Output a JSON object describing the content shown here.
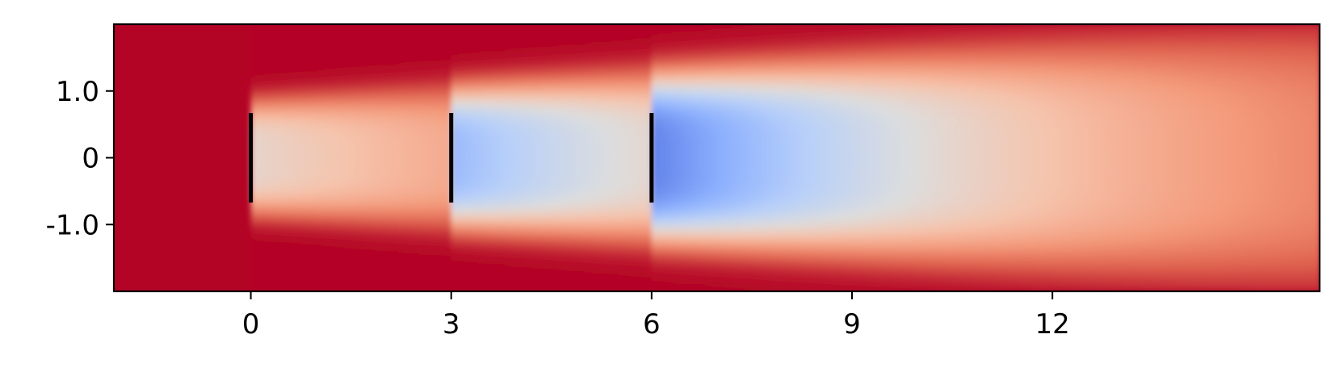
{
  "chart_data": {
    "type": "heatmap",
    "title": "",
    "xlabel": "",
    "ylabel": "",
    "xlim": [
      -2.05,
      16.0
    ],
    "ylim": [
      -2.0,
      2.0
    ],
    "x_ticks": [
      {
        "value": 0,
        "label": "0"
      },
      {
        "value": 3,
        "label": "3"
      },
      {
        "value": 6,
        "label": "6"
      },
      {
        "value": 9,
        "label": "9"
      },
      {
        "value": 12,
        "label": "12"
      }
    ],
    "y_ticks": [
      {
        "value": 1.0,
        "label": "1.0"
      },
      {
        "value": 0,
        "label": "0"
      },
      {
        "value": -1.0,
        "label": "-1.0"
      }
    ],
    "colormap": "coolwarm",
    "background_color": "#b40426",
    "turbines": [
      {
        "x": 0,
        "y_min": -0.67,
        "y_max": 0.67
      },
      {
        "x": 3,
        "y_min": -0.67,
        "y_max": 0.67
      },
      {
        "x": 6,
        "y_min": -0.67,
        "y_max": 0.67
      }
    ],
    "wake_start_x": 0,
    "wake_end_x": 16.0,
    "grid": false,
    "colorbar": false
  }
}
